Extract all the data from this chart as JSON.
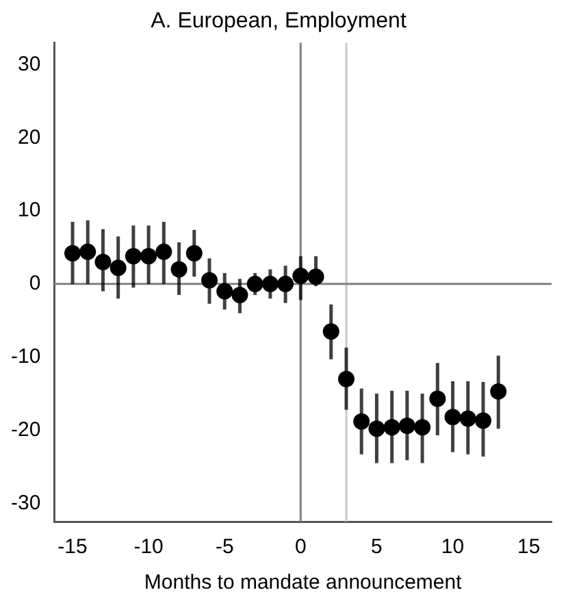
{
  "chart_data": {
    "type": "scatter",
    "title": "A. European, Employment",
    "xlabel": "Months to mandate announcement",
    "x": [
      -15,
      -14,
      -13,
      -12,
      -11,
      -10,
      -9,
      -8,
      -7,
      -6,
      -5,
      -4,
      -3,
      -2,
      -1,
      0,
      1,
      2,
      3,
      4,
      5,
      6,
      7,
      8,
      9,
      10,
      11,
      12,
      13
    ],
    "series": [
      {
        "color": "#000000",
        "values": [
          4.2,
          4.4,
          3,
          2.2,
          3.8,
          3.8,
          4.4,
          2,
          4.2,
          0.5,
          -1,
          -1.5,
          0,
          0,
          0,
          1.1,
          1,
          -6.5,
          -13,
          -18.8,
          -19.8,
          -19.6,
          -19.4,
          -19.6,
          -15.7,
          -18.2,
          -18.4,
          -18.7,
          -14.7
        ],
        "errors": [
          [
            0,
            8.5
          ],
          [
            0,
            8.7
          ],
          [
            -1,
            7.5
          ],
          [
            -2,
            6.5
          ],
          [
            -0.5,
            8
          ],
          [
            0,
            8
          ],
          [
            0,
            8.5
          ],
          [
            -1.5,
            5.7
          ],
          [
            1,
            7.4
          ],
          [
            -2.7,
            3.5
          ],
          [
            -3.5,
            1.5
          ],
          [
            -4,
            0.7
          ],
          [
            -1.5,
            1.5
          ],
          [
            -2,
            2
          ],
          [
            -2.6,
            2.5
          ],
          [
            -2.2,
            3.8
          ],
          [
            -0.3,
            3.8
          ],
          [
            -10.3,
            -2.8
          ],
          [
            -17.2,
            -8.7
          ],
          [
            -23.3,
            -14.3
          ],
          [
            -24.5,
            -15
          ],
          [
            -24.5,
            -14.6
          ],
          [
            -24.1,
            -14.6
          ],
          [
            -24.5,
            -15
          ],
          [
            -20.7,
            -10.8
          ],
          [
            -23,
            -13.3
          ],
          [
            -23.3,
            -13.3
          ],
          [
            -23.6,
            -13.4
          ],
          [
            -19.8,
            -9.8
          ]
        ]
      }
    ],
    "marker": "circle",
    "xlim": [
      -16.2,
      16.5
    ],
    "ylim": [
      -32.5,
      33
    ],
    "xticks": [
      -15,
      -10,
      -5,
      0,
      5,
      10,
      15
    ],
    "yticks": [
      -30,
      -20,
      -10,
      0,
      10,
      20,
      30
    ],
    "ref_lines": [
      {
        "axis": "x",
        "value": 0,
        "color": "#808080"
      },
      {
        "axis": "x",
        "value": 3,
        "color": "#c8c8c8"
      },
      {
        "axis": "y",
        "value": 0,
        "color": "#808080"
      }
    ],
    "grid": false,
    "legend": false
  }
}
